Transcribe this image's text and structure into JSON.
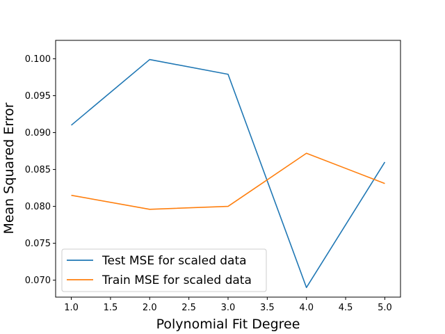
{
  "chart_data": {
    "type": "line",
    "title": "",
    "xlabel": "Polynomial Fit Degree",
    "ylabel": "Mean Squared Error",
    "x": [
      1.0,
      2.0,
      3.0,
      4.0,
      5.0
    ],
    "xlim": [
      0.8,
      5.2
    ],
    "ylim": [
      0.0677,
      0.1025
    ],
    "xticks": [
      "1.0",
      "1.5",
      "2.0",
      "2.5",
      "3.0",
      "3.5",
      "4.0",
      "4.5",
      "5.0"
    ],
    "yticks": [
      "0.070",
      "0.075",
      "0.080",
      "0.085",
      "0.090",
      "0.095",
      "0.100"
    ],
    "grid": false,
    "legend_position": "lower-left",
    "series": [
      {
        "name": "Test MSE for scaled data",
        "color": "#1f77b4",
        "values": [
          0.091,
          0.0999,
          0.0979,
          0.069,
          0.086
        ]
      },
      {
        "name": "Train MSE for scaled data",
        "color": "#ff7f0e",
        "values": [
          0.0815,
          0.0796,
          0.08,
          0.0872,
          0.0831
        ]
      }
    ]
  }
}
